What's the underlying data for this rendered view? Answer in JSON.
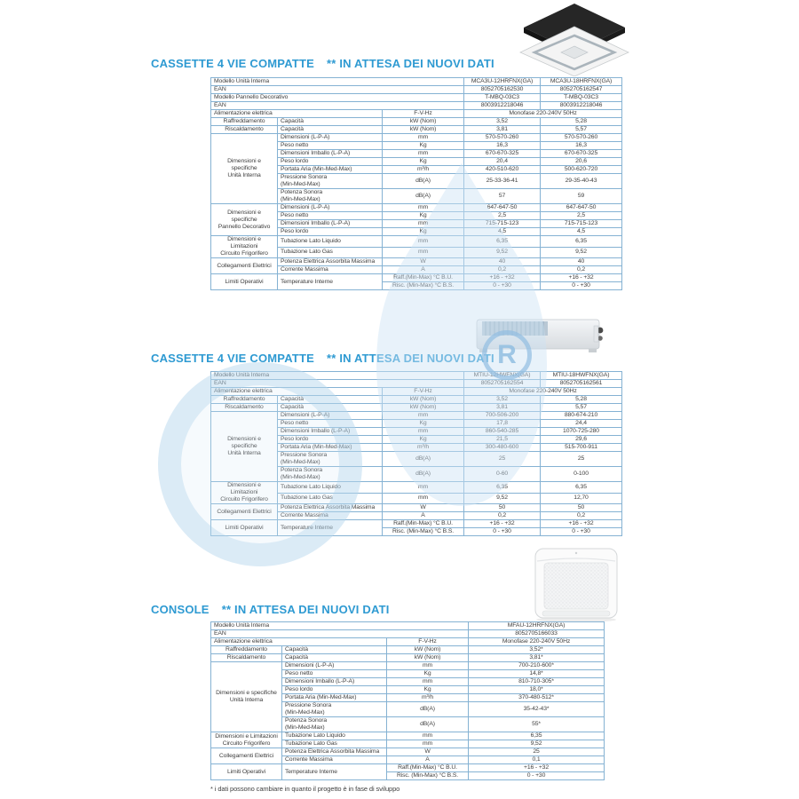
{
  "page": {
    "footnote": "* i dati possono cambiare in quanto il progetto è in fase di sviluppo"
  },
  "watermark": {
    "letter": "R"
  },
  "sections": [
    {
      "title": "CASSETTE 4 VIE COMPATTE",
      "title_note": "** IN ATTESA DEI NUOVI DATI",
      "image": "cassette-4-way-unit-photo",
      "table": {
        "rows": [
          [
            {
              "t": "Modello Unità Interna",
              "cs": 3,
              "role": "label"
            },
            {
              "t": "MCA3U-12HRFNX(GA)"
            },
            {
              "t": "MCA3U-18HRFNX(GA)"
            }
          ],
          [
            {
              "t": "EAN",
              "cs": 3,
              "role": "label"
            },
            {
              "t": "8052705162530"
            },
            {
              "t": "8052705162547"
            }
          ],
          [
            {
              "t": "Modello Pannello Decorativo",
              "cs": 3,
              "role": "label"
            },
            {
              "t": "T-MBQ-03C3"
            },
            {
              "t": "T-MBQ-03C3"
            }
          ],
          [
            {
              "t": "EAN",
              "cs": 3,
              "role": "label"
            },
            {
              "t": "8003912218046"
            },
            {
              "t": "8003912218046"
            }
          ],
          [
            {
              "t": "Alimentazione elettrica",
              "cs": 2,
              "role": "label"
            },
            {
              "t": "F-V-Hz"
            },
            {
              "t": "Monofase 220-240V 50Hz",
              "cs": 2
            }
          ],
          [
            {
              "t": "Raffreddamento",
              "role": "group"
            },
            {
              "t": "Capacità",
              "role": "label"
            },
            {
              "t": "kW (Nom)"
            },
            {
              "t": "3,52"
            },
            {
              "t": "5,28"
            }
          ],
          [
            {
              "t": "Riscaldamento",
              "role": "group"
            },
            {
              "t": "Capacità",
              "role": "label"
            },
            {
              "t": "kW (Nom)"
            },
            {
              "t": "3,81"
            },
            {
              "t": "5,57"
            }
          ],
          [
            {
              "t": "Dimensioni e specifiche\nUnità Interna",
              "rs": 7,
              "role": "group"
            },
            {
              "t": "Dimensioni (L-P-A)",
              "role": "label"
            },
            {
              "t": "mm"
            },
            {
              "t": "570-570-260"
            },
            {
              "t": "570-570-260"
            }
          ],
          [
            {
              "t": "Peso netto",
              "role": "label"
            },
            {
              "t": "Kg"
            },
            {
              "t": "16,3"
            },
            {
              "t": "16,3"
            }
          ],
          [
            {
              "t": "Dimensioni Imballo (L-P-A)",
              "role": "label"
            },
            {
              "t": "mm"
            },
            {
              "t": "670-670-325"
            },
            {
              "t": "670-670-325"
            }
          ],
          [
            {
              "t": "Peso lordo",
              "role": "label"
            },
            {
              "t": "Kg"
            },
            {
              "t": "20,4"
            },
            {
              "t": "20,6"
            }
          ],
          [
            {
              "t": "Portata Aria (Min-Med-Max)",
              "role": "label"
            },
            {
              "t": "m³/h"
            },
            {
              "t": "420-510-620"
            },
            {
              "t": "500-620-720"
            }
          ],
          [
            {
              "t": "Pressione Sonora\n(Min-Med-Max)",
              "role": "label"
            },
            {
              "t": "dB(A)"
            },
            {
              "t": "25-33-36-41"
            },
            {
              "t": "29-35-40-43"
            }
          ],
          [
            {
              "t": "Potenza Sonora\n(Min-Med-Max)",
              "role": "label"
            },
            {
              "t": "dB(A)"
            },
            {
              "t": "57"
            },
            {
              "t": "59"
            }
          ],
          [
            {
              "t": "Dimensioni e specifiche\nPannello Decorativo",
              "rs": 4,
              "role": "group"
            },
            {
              "t": "Dimensioni (L-P-A)",
              "role": "label"
            },
            {
              "t": "mm"
            },
            {
              "t": "647-647-50"
            },
            {
              "t": "647-647-50"
            }
          ],
          [
            {
              "t": "Peso netto",
              "role": "label"
            },
            {
              "t": "Kg"
            },
            {
              "t": "2,5"
            },
            {
              "t": "2,5"
            }
          ],
          [
            {
              "t": "Dimensioni Imballo (L-P-A)",
              "role": "label"
            },
            {
              "t": "mm"
            },
            {
              "t": "715-715-123"
            },
            {
              "t": "715-715-123"
            }
          ],
          [
            {
              "t": "Peso lordo",
              "role": "label"
            },
            {
              "t": "Kg"
            },
            {
              "t": "4,5"
            },
            {
              "t": "4,5"
            }
          ],
          [
            {
              "t": "Dimensioni e Limitazioni\nCircuito Frigorifero",
              "rs": 2,
              "role": "group"
            },
            {
              "t": "Tubazione Lato Liquido",
              "role": "label"
            },
            {
              "t": "mm"
            },
            {
              "t": "6,35"
            },
            {
              "t": "6,35"
            }
          ],
          [
            {
              "t": "Tubazione Lato Gas",
              "role": "label"
            },
            {
              "t": "mm"
            },
            {
              "t": "9,52"
            },
            {
              "t": "9,52"
            }
          ],
          [
            {
              "t": "Collegamenti Elettrici",
              "rs": 2,
              "role": "group"
            },
            {
              "t": "Potenza Elettrica Assorbita Massima",
              "role": "label"
            },
            {
              "t": "W"
            },
            {
              "t": "40"
            },
            {
              "t": "40"
            }
          ],
          [
            {
              "t": "Corrente Massima",
              "role": "label"
            },
            {
              "t": "A"
            },
            {
              "t": "0,2"
            },
            {
              "t": "0,2"
            }
          ],
          [
            {
              "t": "Limiti Operativi",
              "rs": 2,
              "role": "group"
            },
            {
              "t": "Temperature Interne",
              "rs": 2,
              "role": "label"
            },
            {
              "t": "Raff.(Min-Max) °C B.U."
            },
            {
              "t": "+16 - +32"
            },
            {
              "t": "+16 - +32"
            }
          ],
          [
            {
              "t": "Risc. (Min-Max) °C B.S."
            },
            {
              "t": "0 - +30"
            },
            {
              "t": "0 - +30"
            }
          ]
        ]
      }
    },
    {
      "title": "CASSETTE 4 VIE COMPATTE",
      "title_note": "** IN ATTESA DEI NUOVI DATI",
      "image": "ducted-unit-photo",
      "table": {
        "rows": [
          [
            {
              "t": "Modello Unità Interna",
              "cs": 3,
              "role": "label"
            },
            {
              "t": "MTIU-12HWFNX(GA)"
            },
            {
              "t": "MTIU-18HWFNX(GA)"
            }
          ],
          [
            {
              "t": "EAN",
              "cs": 3,
              "role": "label"
            },
            {
              "t": "8052705162554"
            },
            {
              "t": "8052705162561"
            }
          ],
          [
            {
              "t": "Alimentazione elettrica",
              "cs": 2,
              "role": "label"
            },
            {
              "t": "F-V-Hz"
            },
            {
              "t": "Monofase 220-240V 50Hz",
              "cs": 2
            }
          ],
          [
            {
              "t": "Raffreddamento",
              "role": "group"
            },
            {
              "t": "Capacità",
              "role": "label"
            },
            {
              "t": "kW (Nom)"
            },
            {
              "t": "3,52"
            },
            {
              "t": "5,28"
            }
          ],
          [
            {
              "t": "Riscaldamento",
              "role": "group"
            },
            {
              "t": "Capacità",
              "role": "label"
            },
            {
              "t": "kW (Nom)"
            },
            {
              "t": "3,81"
            },
            {
              "t": "5,57"
            }
          ],
          [
            {
              "t": "Dimensioni e specifiche\nUnità Interna",
              "rs": 7,
              "role": "group"
            },
            {
              "t": "Dimensioni (L-P-A)",
              "role": "label"
            },
            {
              "t": "mm"
            },
            {
              "t": "700-506-200"
            },
            {
              "t": "880-674-210"
            }
          ],
          [
            {
              "t": "Peso netto",
              "role": "label"
            },
            {
              "t": "Kg"
            },
            {
              "t": "17,8"
            },
            {
              "t": "24,4"
            }
          ],
          [
            {
              "t": "Dimensioni Imballo (L-P-A)",
              "role": "label"
            },
            {
              "t": "mm"
            },
            {
              "t": "860-540-285"
            },
            {
              "t": "1070-725-280"
            }
          ],
          [
            {
              "t": "Peso lordo",
              "role": "label"
            },
            {
              "t": "Kg"
            },
            {
              "t": "21,5"
            },
            {
              "t": "29,6"
            }
          ],
          [
            {
              "t": "Portata Aria (Min-Med-Max)",
              "role": "label"
            },
            {
              "t": "m³/h"
            },
            {
              "t": "300-480-600"
            },
            {
              "t": "515-700-911"
            }
          ],
          [
            {
              "t": "Pressione Sonora\n(Min-Med-Max)",
              "role": "label"
            },
            {
              "t": "dB(A)"
            },
            {
              "t": "25"
            },
            {
              "t": "25"
            }
          ],
          [
            {
              "t": "Potenza Sonora\n(Min-Med-Max)",
              "role": "label"
            },
            {
              "t": "dB(A)"
            },
            {
              "t": "0-60"
            },
            {
              "t": "0-100"
            }
          ],
          [
            {
              "t": "Dimensioni e Limitazioni\nCircuito Frigorifero",
              "rs": 2,
              "role": "group"
            },
            {
              "t": "Tubazione Lato Liquido",
              "role": "label"
            },
            {
              "t": "mm"
            },
            {
              "t": "6,35"
            },
            {
              "t": "6,35"
            }
          ],
          [
            {
              "t": "Tubazione Lato Gas",
              "role": "label"
            },
            {
              "t": "mm"
            },
            {
              "t": "9,52"
            },
            {
              "t": "12,70"
            }
          ],
          [
            {
              "t": "Collegamenti Elettrici",
              "rs": 2,
              "role": "group"
            },
            {
              "t": "Potenza Elettrica Assorbita Massima",
              "role": "label"
            },
            {
              "t": "W"
            },
            {
              "t": "50"
            },
            {
              "t": "50"
            }
          ],
          [
            {
              "t": "Corrente Massima",
              "role": "label"
            },
            {
              "t": "A"
            },
            {
              "t": "0,2"
            },
            {
              "t": "0,2"
            }
          ],
          [
            {
              "t": "Limiti Operativi",
              "rs": 2,
              "role": "group"
            },
            {
              "t": "Temperature Interne",
              "rs": 2,
              "role": "label"
            },
            {
              "t": "Raff.(Min-Max) °C B.U."
            },
            {
              "t": "+16 - +32"
            },
            {
              "t": "+16 - +32"
            }
          ],
          [
            {
              "t": "Risc. (Min-Max) °C B.S."
            },
            {
              "t": "0 - +30"
            },
            {
              "t": "0 - +30"
            }
          ]
        ]
      }
    },
    {
      "title": "CONSOLE",
      "title_note": "** IN ATTESA DEI NUOVI DATI",
      "image": "console-unit-photo",
      "table": {
        "rows": [
          [
            {
              "t": "Modello Unità Interna",
              "cs": 3,
              "role": "label"
            },
            {
              "t": "MFAU-12HRFNX(GA)"
            }
          ],
          [
            {
              "t": "EAN",
              "cs": 3,
              "role": "label"
            },
            {
              "t": "8052705166033"
            }
          ],
          [
            {
              "t": "Alimentazione elettrica",
              "cs": 2,
              "role": "label"
            },
            {
              "t": "F-V-Hz"
            },
            {
              "t": "Monofase 220-240V 50Hz"
            }
          ],
          [
            {
              "t": "Raffreddamento",
              "role": "group"
            },
            {
              "t": "Capacità",
              "role": "label"
            },
            {
              "t": "kW (Nom)"
            },
            {
              "t": "3,52*"
            }
          ],
          [
            {
              "t": "Riscaldamento",
              "role": "group"
            },
            {
              "t": "Capacità",
              "role": "label"
            },
            {
              "t": "kW (Nom)"
            },
            {
              "t": "3,81*"
            }
          ],
          [
            {
              "t": "Dimensioni e specifiche\nUnità Interna",
              "rs": 7,
              "role": "group"
            },
            {
              "t": "Dimensioni (L-P-A)",
              "role": "label"
            },
            {
              "t": "mm"
            },
            {
              "t": "700-210-600*"
            }
          ],
          [
            {
              "t": "Peso netto",
              "role": "label"
            },
            {
              "t": "Kg"
            },
            {
              "t": "14,8*"
            }
          ],
          [
            {
              "t": "Dimensioni Imballo (L-P-A)",
              "role": "label"
            },
            {
              "t": "mm"
            },
            {
              "t": "810-710-305*"
            }
          ],
          [
            {
              "t": "Peso lordo",
              "role": "label"
            },
            {
              "t": "Kg"
            },
            {
              "t": "18,0*"
            }
          ],
          [
            {
              "t": "Portata Aria (Min-Med-Max)",
              "role": "label"
            },
            {
              "t": "m³/h"
            },
            {
              "t": "370-480-512*"
            }
          ],
          [
            {
              "t": "Pressione Sonora\n(Min-Med-Max)",
              "role": "label"
            },
            {
              "t": "dB(A)"
            },
            {
              "t": "35-42-43*"
            }
          ],
          [
            {
              "t": "Potenza Sonora\n(Min-Med-Max)",
              "role": "label"
            },
            {
              "t": "dB(A)"
            },
            {
              "t": "55*"
            }
          ],
          [
            {
              "t": "Dimensioni e Limitazioni\nCircuito Frigorifero",
              "rs": 2,
              "role": "group"
            },
            {
              "t": "Tubazione Lato Liquido",
              "role": "label"
            },
            {
              "t": "mm"
            },
            {
              "t": "6,35"
            }
          ],
          [
            {
              "t": "Tubazione Lato Gas",
              "role": "label"
            },
            {
              "t": "mm"
            },
            {
              "t": "9,52"
            }
          ],
          [
            {
              "t": "Collegamenti Elettrici",
              "rs": 2,
              "role": "group"
            },
            {
              "t": "Potenza Elettrica Assorbita Massima",
              "role": "label"
            },
            {
              "t": "W"
            },
            {
              "t": "25"
            }
          ],
          [
            {
              "t": "Corrente Massima",
              "role": "label"
            },
            {
              "t": "A"
            },
            {
              "t": "0,1"
            }
          ],
          [
            {
              "t": "Limiti Operativi",
              "rs": 2,
              "role": "group"
            },
            {
              "t": "Temperature Interne",
              "rs": 2,
              "role": "label"
            },
            {
              "t": "Raff.(Min-Max) °C B.U."
            },
            {
              "t": "+16 - +32"
            }
          ],
          [
            {
              "t": "Risc. (Min-Max) °C B.S."
            },
            {
              "t": "0 - +30"
            }
          ]
        ]
      }
    }
  ]
}
